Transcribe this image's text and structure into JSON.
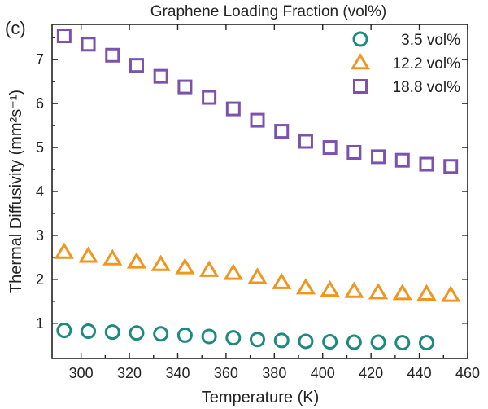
{
  "panel_label": "(c)",
  "top_title": "Graphene Loading Fraction (vol%)",
  "chart_data": {
    "type": "scatter",
    "xlabel": "Temperature (K)",
    "ylabel": "Thermal Diffusivity (mm²s⁻¹)",
    "xlim": [
      288,
      460
    ],
    "ylim": [
      0.2,
      7.8
    ],
    "xticks": [
      300,
      320,
      340,
      360,
      380,
      400,
      420,
      440,
      460
    ],
    "yticks": [
      1,
      2,
      3,
      4,
      5,
      6,
      7
    ],
    "grid": false,
    "legend_position": "top-right",
    "series": [
      {
        "name": "3.5 vol%",
        "marker": "circle",
        "color": "#1e8a7f",
        "x": [
          293,
          303,
          313,
          323,
          333,
          343,
          353,
          363,
          373,
          383,
          393,
          403,
          413,
          423,
          433,
          443
        ],
        "y": [
          0.84,
          0.82,
          0.8,
          0.78,
          0.76,
          0.73,
          0.7,
          0.67,
          0.63,
          0.61,
          0.59,
          0.58,
          0.57,
          0.57,
          0.56,
          0.56
        ]
      },
      {
        "name": "12.2 vol%",
        "marker": "triangle",
        "color": "#f0961e",
        "x": [
          293,
          303,
          313,
          323,
          333,
          343,
          353,
          363,
          373,
          383,
          393,
          403,
          413,
          423,
          433,
          443,
          453
        ],
        "y": [
          2.62,
          2.53,
          2.47,
          2.4,
          2.34,
          2.27,
          2.21,
          2.14,
          2.05,
          1.93,
          1.81,
          1.76,
          1.73,
          1.7,
          1.68,
          1.67,
          1.64
        ]
      },
      {
        "name": "18.8 vol%",
        "marker": "square",
        "color": "#7b52ae",
        "x": [
          293,
          303,
          313,
          323,
          333,
          343,
          353,
          363,
          373,
          383,
          393,
          403,
          413,
          423,
          433,
          443,
          453
        ],
        "y": [
          7.54,
          7.35,
          7.1,
          6.87,
          6.62,
          6.38,
          6.14,
          5.88,
          5.62,
          5.37,
          5.14,
          5.0,
          4.89,
          4.79,
          4.71,
          4.62,
          4.57
        ]
      }
    ]
  }
}
